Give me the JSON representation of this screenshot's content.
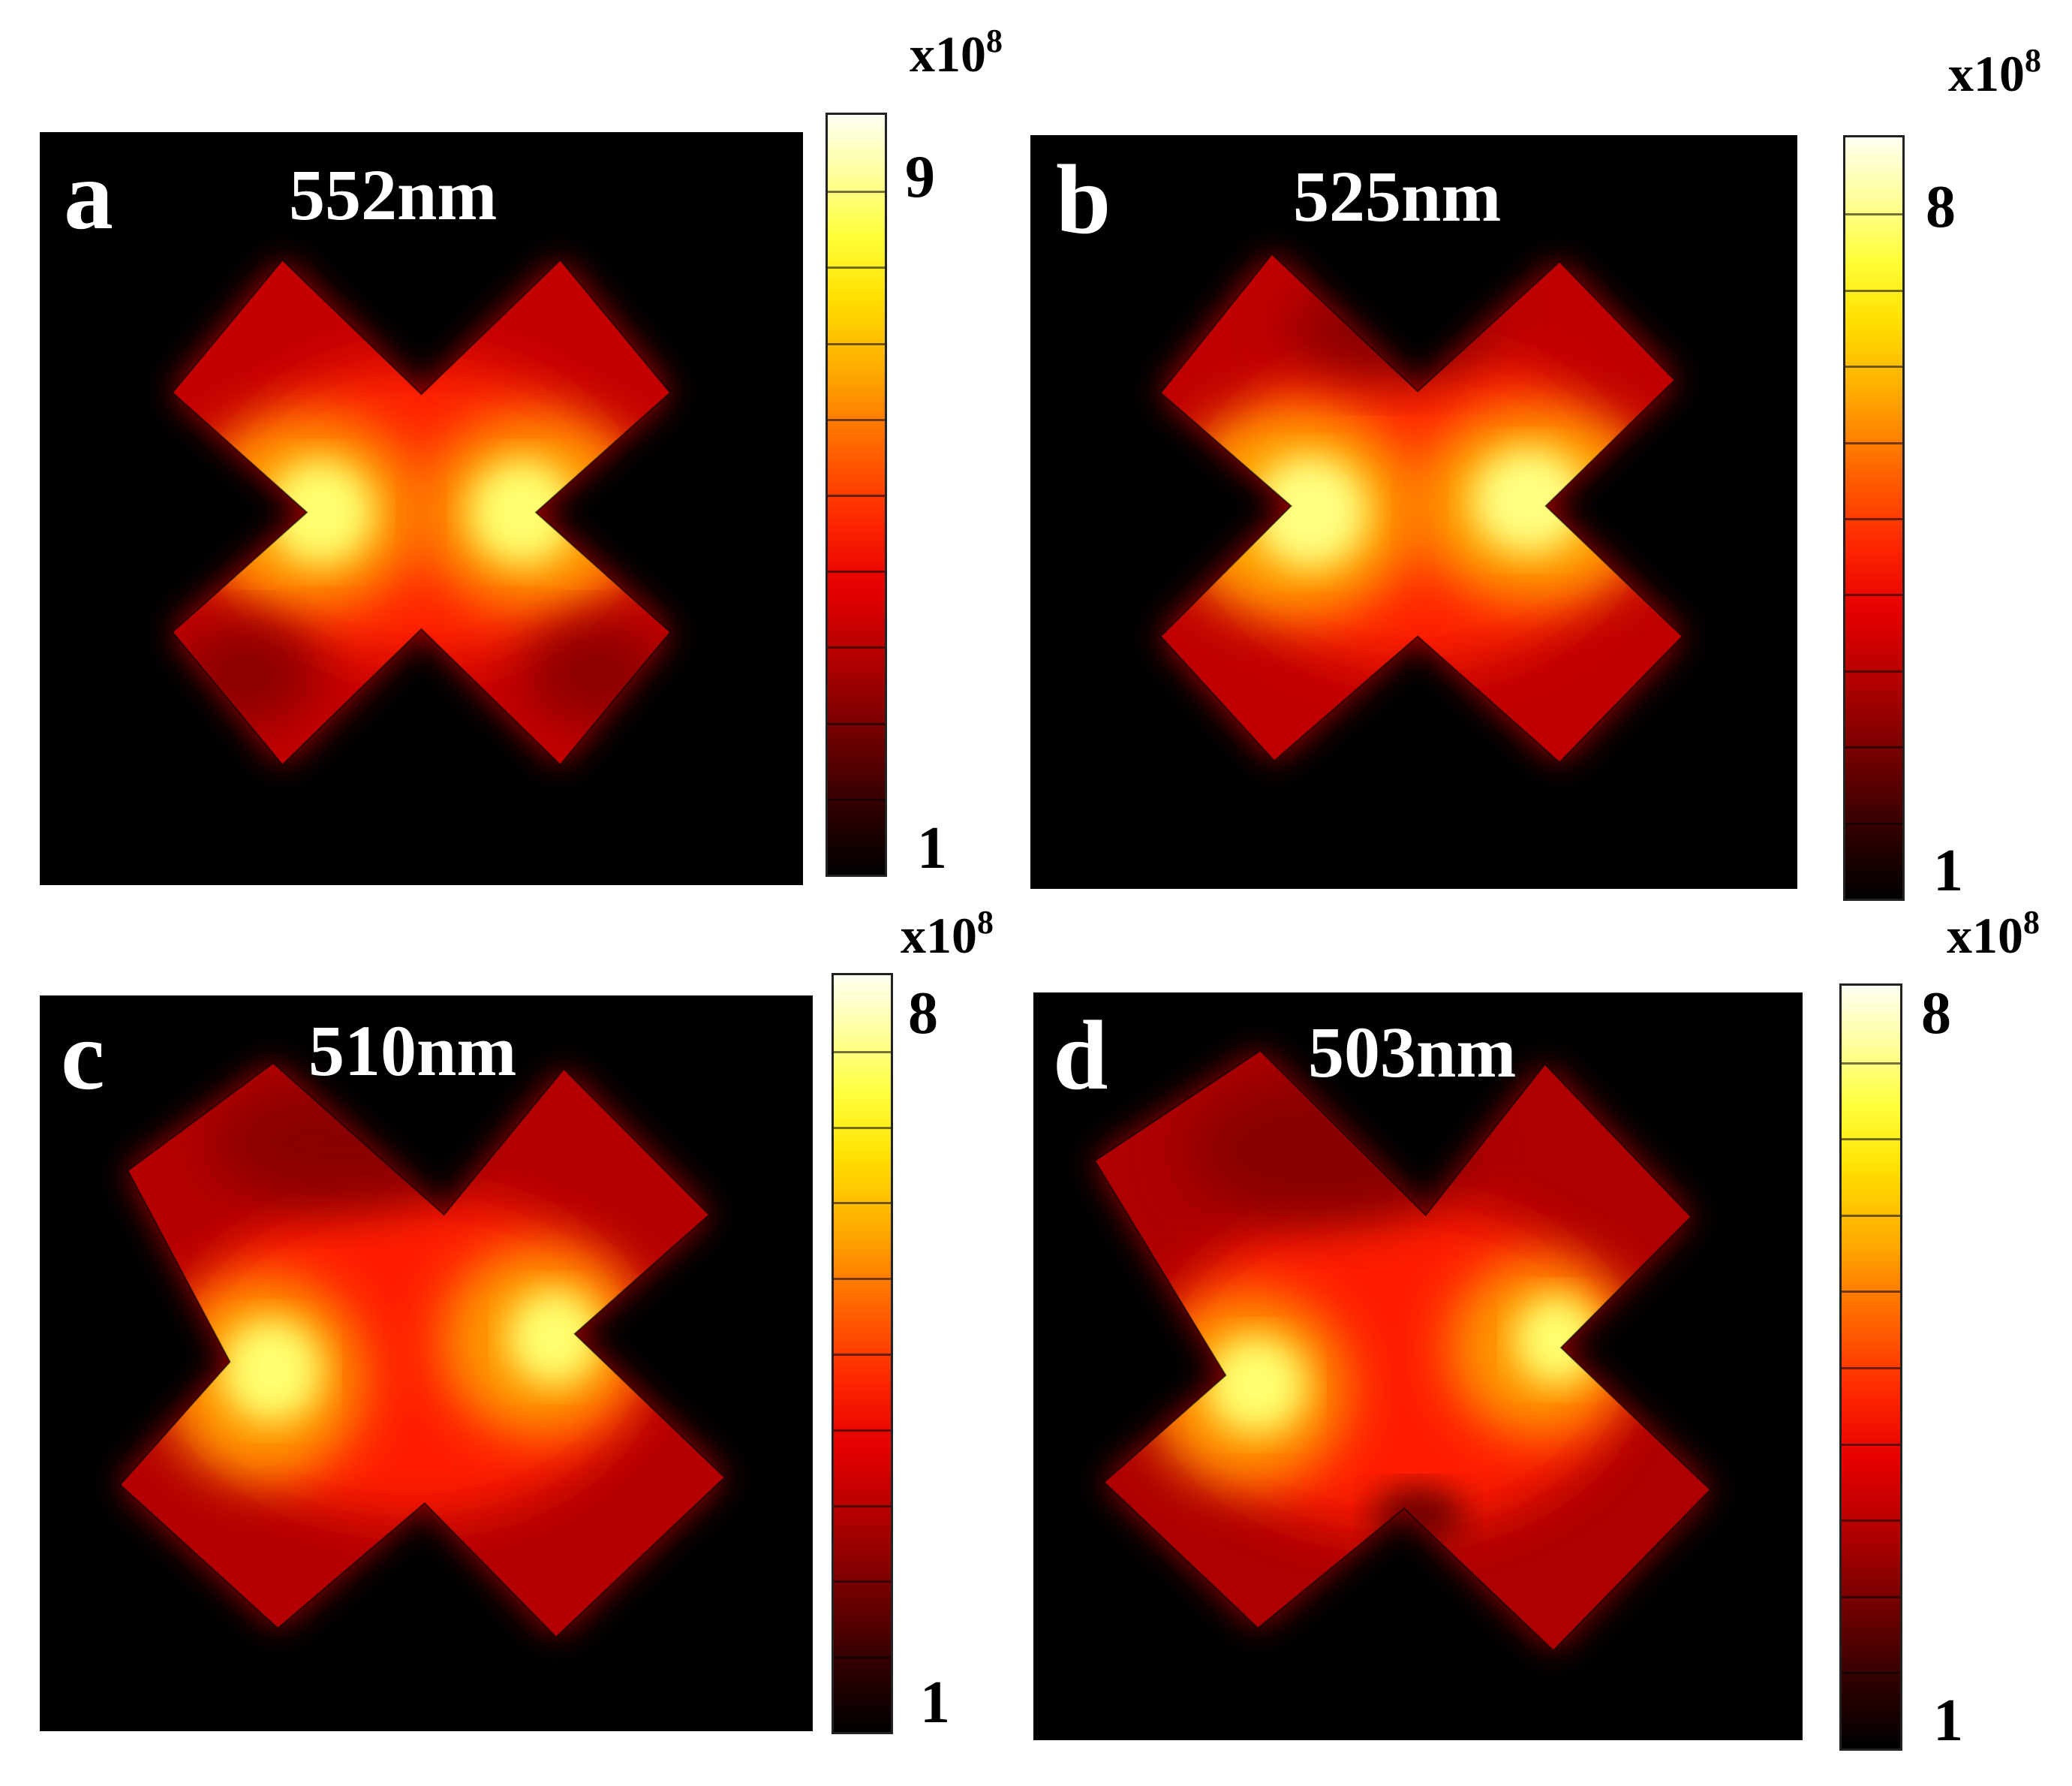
{
  "figure": {
    "panels": [
      {
        "id": "a",
        "label": "a",
        "title": "552nm",
        "colorbar": {
          "max_label": "9",
          "min_label": "1",
          "exponent_base": "x10",
          "exponent_power": "8"
        }
      },
      {
        "id": "b",
        "label": "b",
        "title": "525nm",
        "colorbar": {
          "max_label": "8",
          "min_label": "1",
          "exponent_base": "x10",
          "exponent_power": "8"
        }
      },
      {
        "id": "c",
        "label": "c",
        "title": "510nm",
        "colorbar": {
          "max_label": "8",
          "min_label": "1",
          "exponent_base": "x10",
          "exponent_power": "8"
        }
      },
      {
        "id": "d",
        "label": "d",
        "title": "503nm",
        "colorbar": {
          "max_label": "8",
          "min_label": "1",
          "exponent_base": "x10",
          "exponent_power": "8"
        }
      }
    ]
  },
  "colors": {
    "background": "#000000",
    "field_low": "#8a0000",
    "field_mid": "#ff1a00",
    "field_high": "#ffff80",
    "page": "#ffffff"
  }
}
